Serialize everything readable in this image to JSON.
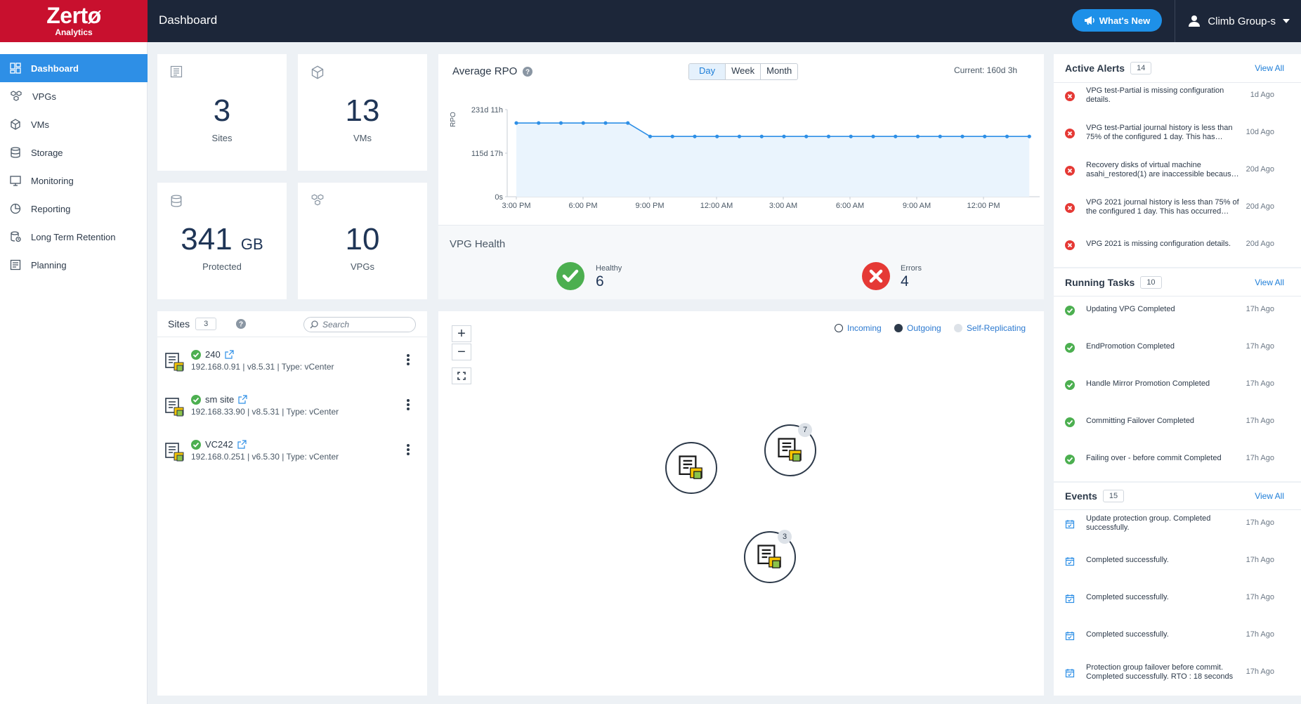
{
  "app": {
    "brand": "Zertø",
    "sub": "Analytics"
  },
  "header": {
    "title": "Dashboard",
    "whats_new": "What's New",
    "user": "Climb Group-s"
  },
  "sidebar": {
    "items": [
      {
        "label": "Dashboard",
        "icon": "dashboard-icon",
        "active": true
      },
      {
        "label": "VPGs",
        "icon": "vpg-icon"
      },
      {
        "label": "VMs",
        "icon": "vm-icon"
      },
      {
        "label": "Storage",
        "icon": "storage-icon"
      },
      {
        "label": "Monitoring",
        "icon": "monitor-icon"
      },
      {
        "label": "Reporting",
        "icon": "pie-chart-icon"
      },
      {
        "label": "Long Term Retention",
        "icon": "retention-icon"
      },
      {
        "label": "Planning",
        "icon": "planning-icon"
      }
    ]
  },
  "stats": {
    "sites": {
      "value": "3",
      "label": "Sites"
    },
    "vms": {
      "value": "13",
      "label": "VMs"
    },
    "protected": {
      "value": "341",
      "unit": "GB",
      "label": "Protected"
    },
    "vpgs": {
      "value": "10",
      "label": "VPGs"
    }
  },
  "rpo": {
    "title": "Average RPO",
    "ranges": [
      "Day",
      "Week",
      "Month"
    ],
    "selected_range": "Day",
    "current": "Current: 160d 3h"
  },
  "chart_data": {
    "type": "line",
    "title": "Average RPO",
    "ylabel": "RPO",
    "y_ticks": [
      "231d 11h",
      "115d 17h",
      "0s"
    ],
    "x_ticks": [
      "3:00 PM",
      "6:00 PM",
      "9:00 PM",
      "12:00 AM",
      "3:00 AM",
      "6:00 AM",
      "9:00 AM",
      "12:00 PM"
    ],
    "ylim_hours": [
      0,
      5555
    ],
    "series": [
      {
        "values_hours": [
          4700,
          4700,
          4700,
          4700,
          4700,
          4700,
          3843,
          3843,
          3843,
          3843,
          3843,
          3843,
          3843,
          3843,
          3843,
          3843,
          3843,
          3843,
          3843,
          3843,
          3843,
          3843,
          3843,
          3843
        ]
      }
    ],
    "grid": false
  },
  "vpg_health": {
    "title": "VPG Health",
    "healthy_label": "Healthy",
    "healthy": "6",
    "errors_label": "Errors",
    "errors": "4"
  },
  "sites": {
    "title": "Sites",
    "count": "3",
    "search_placeholder": "Search",
    "rows": [
      {
        "name": "240",
        "meta": "192.168.0.91 | v8.5.31 | Type: vCenter"
      },
      {
        "name": "sm site",
        "meta": "192.168.33.90 | v8.5.31 | Type: vCenter"
      },
      {
        "name": "VC242",
        "meta": "192.168.0.251 | v6.5.30 | Type: vCenter"
      }
    ]
  },
  "map": {
    "legend": {
      "incoming": "Incoming",
      "outgoing": "Outgoing",
      "self": "Self-Replicating"
    },
    "nodes": [
      {
        "count": ""
      },
      {
        "count": "7"
      },
      {
        "count": "3"
      }
    ]
  },
  "alerts": {
    "title": "Active Alerts",
    "count": "14",
    "view_all": "View All",
    "items": [
      {
        "text": "VPG test-Partial is missing configuration details.",
        "ago": "1d Ago"
      },
      {
        "text": "VPG test-Partial journal history is less than 75% of the configured 1 day. This has…",
        "ago": "10d Ago"
      },
      {
        "text": "Recovery disks of virtual machine asahi_restored(1) are inaccessible becaus…",
        "ago": "20d Ago"
      },
      {
        "text": "VPG 2021 journal history is less than 75% of the configured 1 day. This has occurred…",
        "ago": "20d Ago"
      },
      {
        "text": "VPG 2021 is missing configuration details.",
        "ago": "20d Ago"
      }
    ]
  },
  "tasks": {
    "title": "Running Tasks",
    "count": "10",
    "view_all": "View All",
    "items": [
      {
        "text": "Updating VPG Completed",
        "ago": "17h Ago"
      },
      {
        "text": "EndPromotion Completed",
        "ago": "17h Ago"
      },
      {
        "text": "Handle Mirror Promotion Completed",
        "ago": "17h Ago"
      },
      {
        "text": "Committing Failover Completed",
        "ago": "17h Ago"
      },
      {
        "text": "Failing over - before commit Completed",
        "ago": "17h Ago"
      }
    ]
  },
  "events": {
    "title": "Events",
    "count": "15",
    "view_all": "View All",
    "items": [
      {
        "text": "Update protection group. Completed successfully.",
        "ago": "17h Ago"
      },
      {
        "text": "Completed successfully.",
        "ago": "17h Ago"
      },
      {
        "text": "Completed successfully.",
        "ago": "17h Ago"
      },
      {
        "text": "Completed successfully.",
        "ago": "17h Ago"
      },
      {
        "text": "Protection group failover before commit. Completed successfully. RTO : 18 seconds",
        "ago": "17h Ago"
      }
    ]
  },
  "colors": {
    "brand": "#c8102e",
    "header": "#1c2639",
    "accent": "#2e8fe6",
    "ok": "#4caf50",
    "error": "#e53935"
  }
}
